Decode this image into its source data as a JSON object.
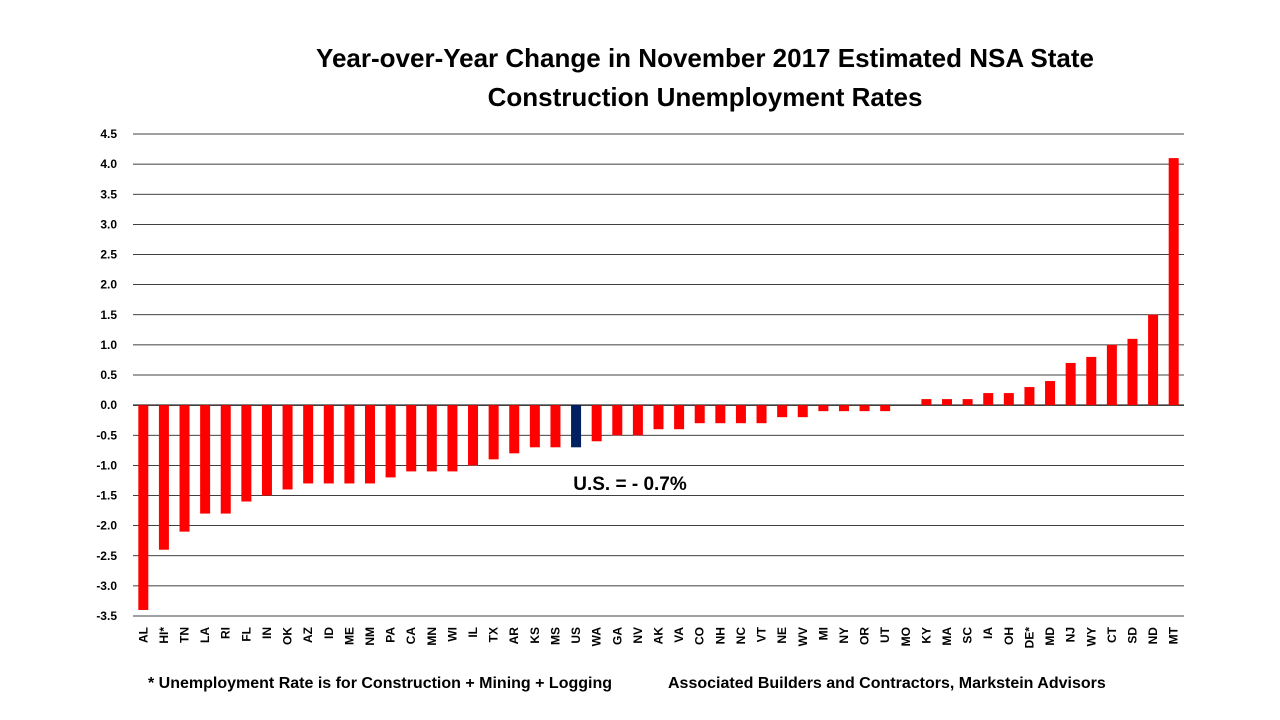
{
  "chart_data": {
    "type": "bar",
    "title_line1": "Year-over-Year Change in November 2017 Estimated NSA State",
    "title_line2": "Construction Unemployment Rates",
    "xlabel": "",
    "ylabel": "",
    "ylim": [
      -3.5,
      4.5
    ],
    "ytick_step": 0.5,
    "grid": true,
    "categories": [
      "AL",
      "HI*",
      "TN",
      "LA",
      "RI",
      "FL",
      "IN",
      "OK",
      "AZ",
      "ID",
      "ME",
      "NM",
      "PA",
      "CA",
      "MN",
      "WI",
      "IL",
      "TX",
      "AR",
      "KS",
      "MS",
      "US",
      "WA",
      "GA",
      "NV",
      "AK",
      "VA",
      "CO",
      "NH",
      "NC",
      "VT",
      "NE",
      "WV",
      "MI",
      "NY",
      "OR",
      "UT",
      "MO",
      "KY",
      "MA",
      "SC",
      "IA",
      "OH",
      "DE*",
      "MD",
      "NJ",
      "WY",
      "CT",
      "SD",
      "ND",
      "MT"
    ],
    "values": [
      -3.4,
      -2.4,
      -2.1,
      -1.8,
      -1.8,
      -1.6,
      -1.5,
      -1.4,
      -1.3,
      -1.3,
      -1.3,
      -1.3,
      -1.2,
      -1.1,
      -1.1,
      -1.1,
      -1.0,
      -0.9,
      -0.8,
      -0.7,
      -0.7,
      -0.7,
      -0.6,
      -0.5,
      -0.5,
      -0.4,
      -0.4,
      -0.3,
      -0.3,
      -0.3,
      -0.3,
      -0.2,
      -0.2,
      -0.1,
      -0.1,
      -0.1,
      -0.1,
      0.0,
      0.1,
      0.1,
      0.1,
      0.2,
      0.2,
      0.3,
      0.4,
      0.7,
      0.8,
      1.0,
      1.1,
      1.5,
      4.1
    ],
    "highlight_category": "US",
    "annotation": "U.S. = - 0.7%",
    "colors": {
      "bar": "#ff0000",
      "highlight": "#002060",
      "grid": "#000000"
    }
  },
  "footer": {
    "left": "* Unemployment Rate is for Construction + Mining + Logging",
    "right": "Associated Builders and Contractors, Markstein Advisors"
  }
}
